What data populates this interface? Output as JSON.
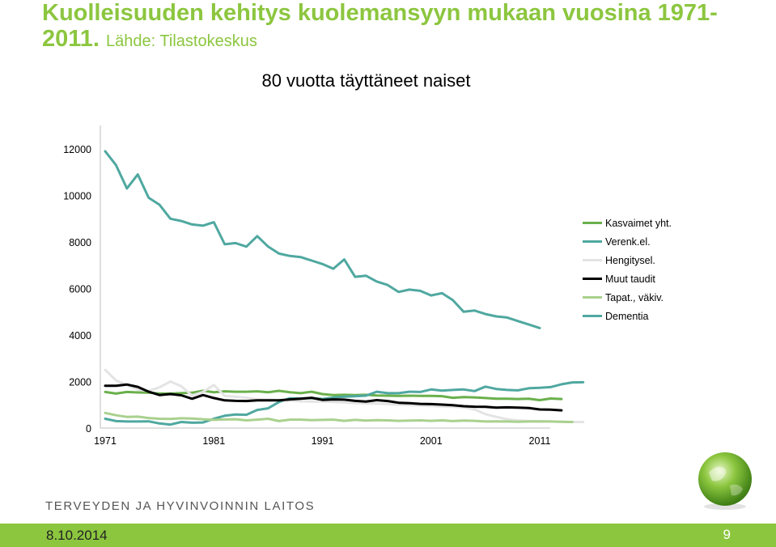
{
  "slide": {
    "title_main": "Kuolleisuuden kehitys kuolemansyyn mukaan vuosina 1971-2011.",
    "title_source": "Lähde: Tilastokeskus",
    "organization": "TERVEYDEN JA HYVINVOINNIN LAITOS",
    "date": "8.10.2014",
    "page_number": "9"
  },
  "colors": {
    "title_green": "#8cc63f",
    "footer_green": "#8cc63f"
  },
  "chart_data": {
    "type": "line",
    "title": "80 vuotta täyttäneet naiset",
    "xlabel": "",
    "ylabel": "",
    "x_start": 1971,
    "x_end": 2011,
    "xticks": [
      1971,
      1981,
      1991,
      2001,
      2011
    ],
    "ylim": [
      0,
      12000
    ],
    "yticks": [
      0,
      2000,
      4000,
      6000,
      8000,
      10000,
      12000
    ],
    "grid": false,
    "legend_position": "right",
    "series": [
      {
        "name": "Kasvaimet yht.",
        "color": "#6ab04c",
        "values": [
          1550,
          1480,
          1550,
          1530,
          1520,
          1480,
          1480,
          1500,
          1520,
          1600,
          1540,
          1580,
          1560,
          1560,
          1580,
          1540,
          1600,
          1540,
          1500,
          1560,
          1460,
          1420,
          1430,
          1420,
          1430,
          1400,
          1390,
          1380,
          1390,
          1380,
          1380,
          1370,
          1300,
          1330,
          1320,
          1290,
          1260,
          1260,
          1250,
          1260,
          1200,
          1270,
          1250
        ]
      },
      {
        "name": "Verenk.el.",
        "color": "#4fa8a0",
        "values": [
          400,
          300,
          280,
          280,
          290,
          200,
          150,
          260,
          230,
          240,
          400,
          530,
          580,
          570,
          780,
          850,
          1120,
          1280,
          1270,
          1290,
          1250,
          1310,
          1350,
          1370,
          1390,
          1560,
          1500,
          1500,
          1560,
          1550,
          1660,
          1610,
          1640,
          1660,
          1590,
          1780,
          1680,
          1640,
          1620,
          1710,
          1730,
          1760,
          1880,
          1960,
          1970
        ]
      },
      {
        "name": "Hengitysel.",
        "color": "#e4e4e4",
        "values": [
          2500,
          2050,
          1850,
          1650,
          1600,
          1750,
          2000,
          1800,
          1400,
          1550,
          1850,
          1380,
          1350,
          1300,
          1230,
          1220,
          1200,
          1180,
          1150,
          1140,
          1140,
          1120,
          1100,
          1070,
          1060,
          1050,
          1030,
          1010,
          990,
          970,
          950,
          930,
          910,
          890,
          800,
          600,
          480,
          380,
          330,
          300,
          290,
          280,
          270,
          260,
          260
        ]
      },
      {
        "name": "Muut taudit",
        "color": "#000000",
        "values": [
          1820,
          1820,
          1870,
          1770,
          1560,
          1420,
          1460,
          1410,
          1260,
          1420,
          1290,
          1190,
          1170,
          1160,
          1190,
          1190,
          1190,
          1230,
          1260,
          1300,
          1210,
          1230,
          1220,
          1170,
          1140,
          1200,
          1160,
          1090,
          1070,
          1040,
          1030,
          1010,
          980,
          940,
          920,
          910,
          880,
          890,
          880,
          860,
          800,
          790,
          760
        ]
      },
      {
        "name": "Tapat., väkiv.",
        "color": "#a9d18e",
        "values": [
          650,
          550,
          480,
          490,
          430,
          400,
          390,
          420,
          410,
          380,
          350,
          370,
          380,
          330,
          360,
          400,
          300,
          360,
          360,
          340,
          350,
          360,
          310,
          350,
          320,
          340,
          330,
          310,
          320,
          330,
          310,
          330,
          300,
          320,
          310,
          280,
          290,
          280,
          270,
          280,
          290,
          280,
          270,
          260
        ]
      },
      {
        "name": "Dementia",
        "color": "#4fa8a0",
        "values": [
          11900,
          11300,
          10300,
          10900,
          9900,
          9600,
          9000,
          8900,
          8750,
          8700,
          8850,
          7900,
          7950,
          7800,
          8250,
          7800,
          7500,
          7400,
          7350,
          7200,
          7050,
          6850,
          7250,
          6500,
          6550,
          6300,
          6150,
          5850,
          5950,
          5900,
          5700,
          5800,
          5500,
          5000,
          5050,
          4900,
          4800,
          4750,
          4600,
          4450,
          4300
        ]
      }
    ]
  }
}
